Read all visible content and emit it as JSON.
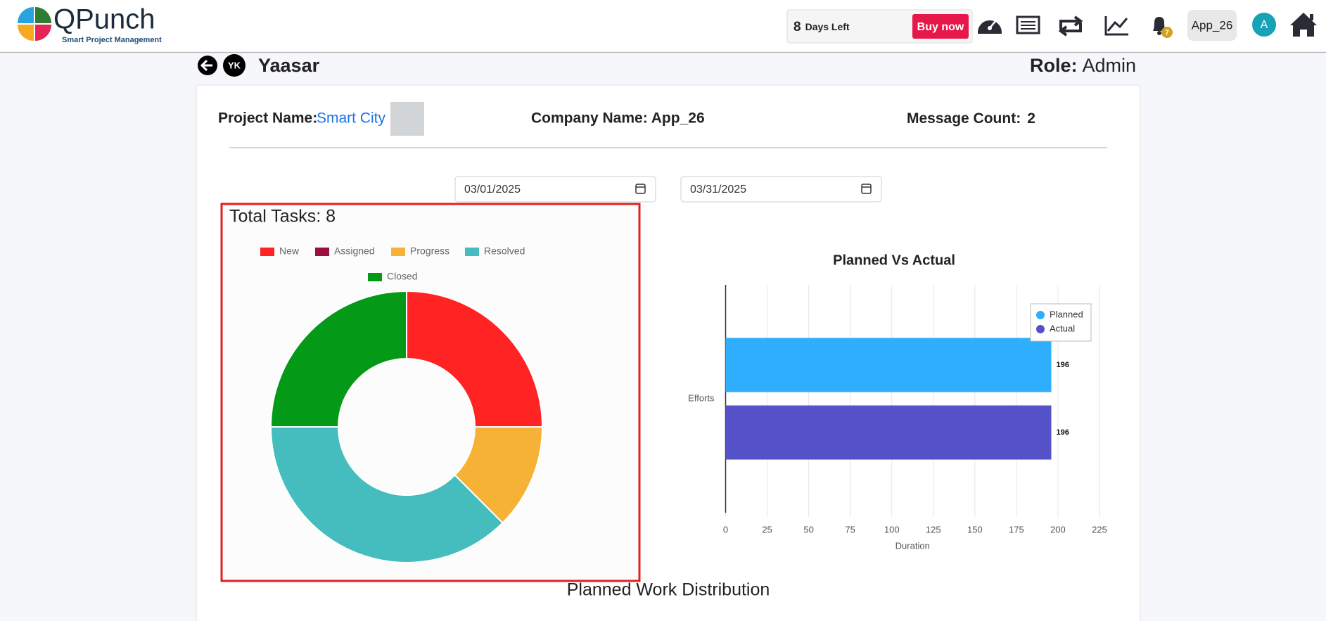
{
  "header": {
    "brand": "QPunch",
    "tagline": "Smart Project Management",
    "trial_days": "8",
    "trial_text": "Days Left",
    "buy_button": "Buy now",
    "notification_count": "7",
    "workspace": "App_26",
    "avatar": "A"
  },
  "user": {
    "initials": "YK",
    "name": "Yaasar",
    "role_label": "Role:",
    "role": "Admin"
  },
  "project": {
    "project_label": "Project Name:",
    "project_name": "Smart City",
    "company": "Company Name: App_26",
    "message_label": "Message Count:",
    "message_count": "2"
  },
  "dates": {
    "start": "03/01/2025",
    "end": "03/31/2025"
  },
  "chart_data": [
    {
      "type": "donut",
      "title": "Total Tasks: 8",
      "categories": [
        "New",
        "Assigned",
        "Progress",
        "Resolved",
        "Closed"
      ],
      "values": [
        2,
        0,
        1,
        3,
        2
      ],
      "colors": [
        "#ff2323",
        "#9b1040",
        "#f5b236",
        "#45bdbe",
        "#059918"
      ]
    },
    {
      "type": "hbar",
      "title": "Planned Vs Actual",
      "categories": [
        "Efforts"
      ],
      "series": [
        {
          "name": "Planned",
          "color": "#2eaefc",
          "values": [
            196
          ]
        },
        {
          "name": "Actual",
          "color": "#5551c8",
          "values": [
            196
          ]
        }
      ],
      "xlim": [
        0,
        225
      ],
      "xticks": [
        0,
        25,
        50,
        75,
        100,
        125,
        150,
        175,
        200,
        225
      ],
      "xlabel": "Duration",
      "grid": true,
      "legend": "top-right"
    }
  ],
  "section_title": "Planned Work Distribution"
}
